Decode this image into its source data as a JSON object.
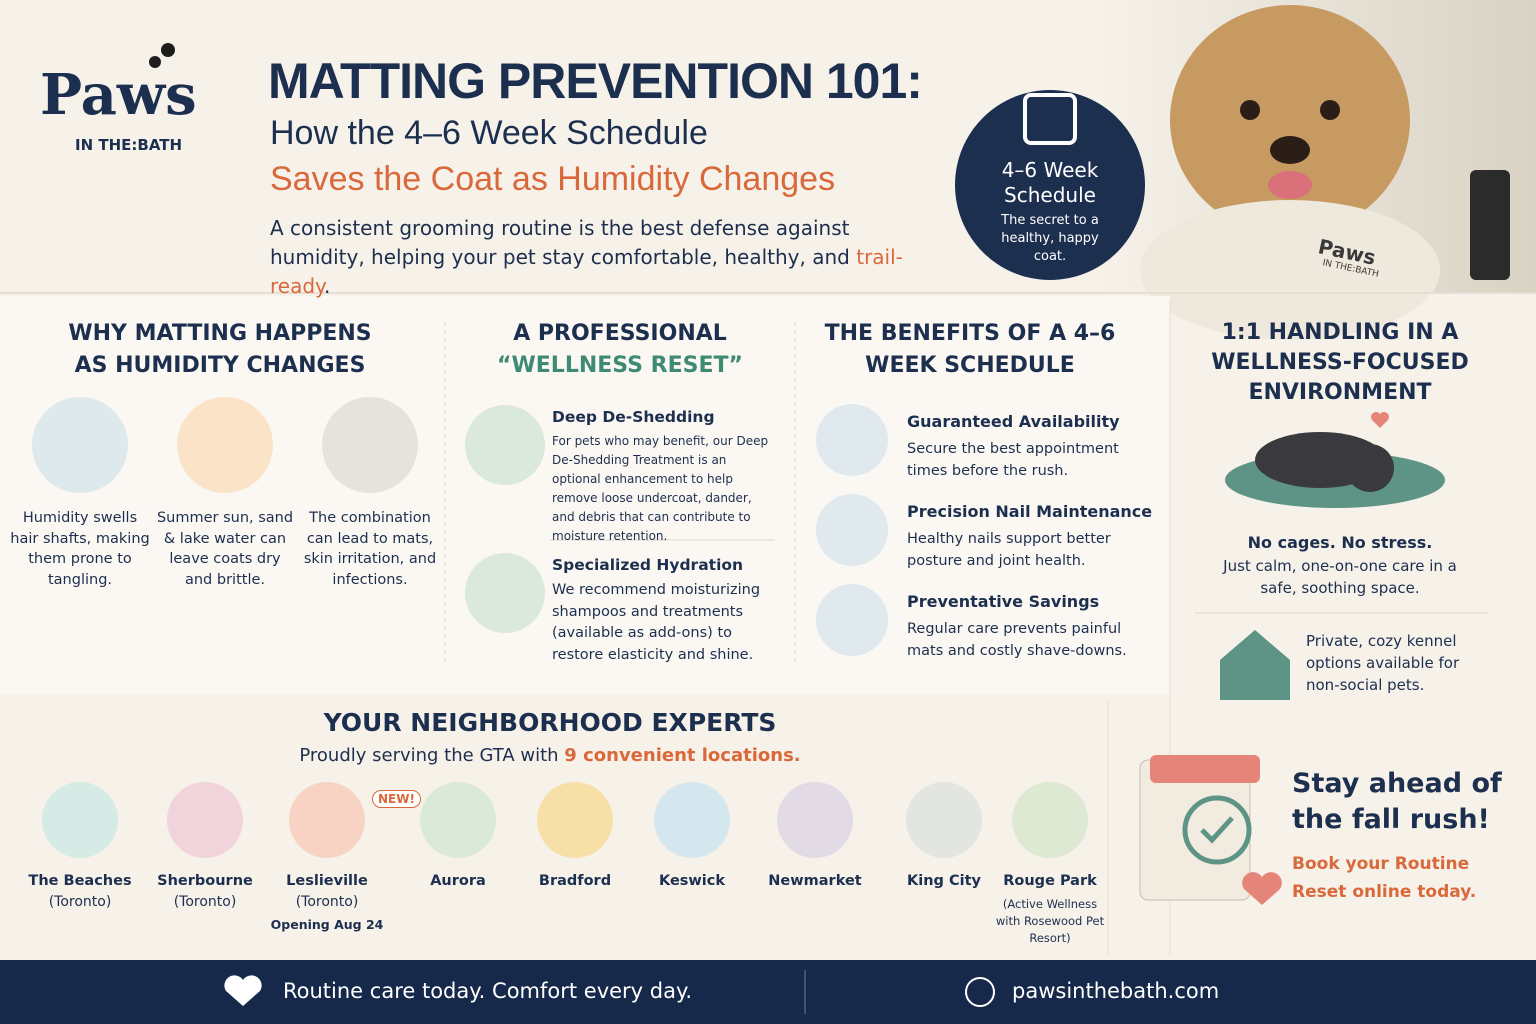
{
  "logo": {
    "name": "Paws",
    "tagline": "IN THE:BATH"
  },
  "header": {
    "title": "MATTING PREVENTION 101:",
    "subtitle": "How the 4–6 Week Schedule",
    "subtitle_accent": "Saves the Coat as Humidity Changes",
    "intro": "A consistent grooming routine is the best defense against humidity, helping your pet stay comfortable, healthy, and ",
    "intro_highlight": "trail-ready",
    "intro_end": "."
  },
  "badge": {
    "title": "4–6 Week Schedule",
    "text": "The secret to a healthy, happy coat."
  },
  "photo": {
    "robe_brand": "Paws",
    "robe_tagline": "IN THE:BATH"
  },
  "why": {
    "title": "WHY MATTING HAPPENS AS HUMIDITY CHANGES",
    "steps": [
      "Humidity swells hair shafts, making them prone to tangling.",
      "Summer sun, sand & lake water can leave coats dry and brittle.",
      "The combination can lead to mats, skin irritation, and infections."
    ]
  },
  "reset": {
    "title": "A PROFESSIONAL",
    "title_accent": "“WELLNESS RESET”",
    "items": [
      {
        "title": "Deep De-Shedding",
        "text": "For pets who may benefit, our Deep De-Shedding Treatment is an optional enhancement to help remove loose undercoat, dander, and debris that can contribute to moisture retention."
      },
      {
        "title": "Specialized Hydration",
        "text": "We recommend moisturizing shampoos and treatments (available as add-ons) to restore elasticity and shine."
      }
    ]
  },
  "benefits": {
    "title": "THE BENEFITS OF A 4–6 WEEK SCHEDULE",
    "items": [
      {
        "title": "Guaranteed Availability",
        "text": "Secure the best appointment times before the rush."
      },
      {
        "title": "Precision Nail Maintenance",
        "text": "Healthy nails support better posture and joint health."
      },
      {
        "title": "Preventative Savings",
        "text": "Regular care prevents painful mats and costly shave-downs."
      }
    ]
  },
  "handling": {
    "title": "1:1 HANDLING IN A WELLNESS-FOCUSED ENVIRONMENT",
    "lead": "No cages. No stress.",
    "text": "Just calm, one-on-one care in a safe, soothing space.",
    "kennel": "Private, cozy kennel options available for non-social pets."
  },
  "locations": {
    "title": "YOUR NEIGHBORHOOD EXPERTS",
    "subtitle": "Proudly serving the GTA with ",
    "subtitle_accent": "9 convenient locations.",
    "items": [
      {
        "name": "The Beaches",
        "sub": "(Toronto)"
      },
      {
        "name": "Sherbourne",
        "sub": "(Toronto)"
      },
      {
        "name": "Leslieville",
        "sub": "(Toronto)",
        "badge": "NEW!",
        "note": "Opening Aug 24"
      },
      {
        "name": "Aurora"
      },
      {
        "name": "Bradford"
      },
      {
        "name": "Keswick"
      },
      {
        "name": "Newmarket"
      },
      {
        "name": "King City"
      },
      {
        "name": "Rouge Park",
        "sub": "(Active Wellness with Rosewood Pet Resort)"
      }
    ]
  },
  "cta": {
    "title": "Stay ahead of the fall rush!",
    "text": "Book your Routine Reset online today."
  },
  "footer": {
    "tagline": "Routine care today. Comfort every day.",
    "url": "pawsinthebath.com"
  }
}
